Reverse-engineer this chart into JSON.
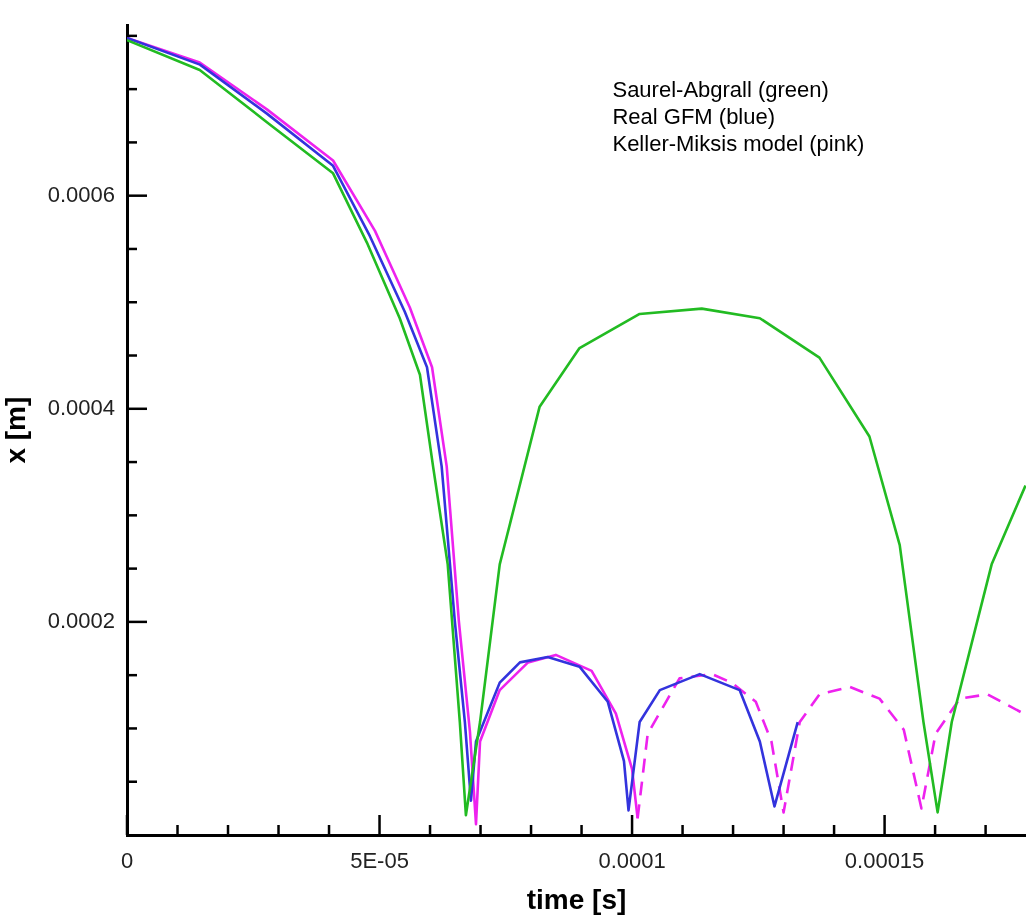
{
  "chart_data": {
    "type": "line",
    "xlabel": "time [s]",
    "ylabel": "x [m]",
    "annotations": [
      "Saurel-Abgrall (green)",
      "Real GFM (blue)",
      "Keller-Miksis model (pink)"
    ],
    "xlim": [
      0,
      0.000178
    ],
    "ylim": [
      0,
      0.00076
    ],
    "xticks": [
      0,
      {
        "value": 1e-05,
        "label": null
      },
      {
        "value": 2e-05,
        "label": null
      },
      {
        "value": 3e-05,
        "label": null
      },
      {
        "value": 4e-05,
        "label": null
      },
      {
        "value": 5e-05,
        "label": "5E-05"
      },
      {
        "value": 6e-05,
        "label": null
      },
      {
        "value": 7e-05,
        "label": null
      },
      {
        "value": 8e-05,
        "label": null
      },
      {
        "value": 9e-05,
        "label": null
      },
      0.0001,
      {
        "value": 0.00011,
        "label": null
      },
      {
        "value": 0.00012,
        "label": null
      },
      {
        "value": 0.00013,
        "label": null
      },
      {
        "value": 0.00014,
        "label": null
      },
      0.00015,
      {
        "value": 0.00016,
        "label": null
      },
      {
        "value": 0.00017,
        "label": null
      }
    ],
    "yticks": [
      {
        "value": 5e-05,
        "label": null
      },
      {
        "value": 0.0001,
        "label": null
      },
      {
        "value": 0.00015,
        "label": null
      },
      0.0002,
      {
        "value": 0.00025,
        "label": null
      },
      {
        "value": 0.0003,
        "label": null
      },
      {
        "value": 0.00035,
        "label": null
      },
      0.0004,
      {
        "value": 0.00045,
        "label": null
      },
      {
        "value": 0.0005,
        "label": null
      },
      {
        "value": 0.00055,
        "label": null
      },
      0.0006,
      {
        "value": 0.00065,
        "label": null
      },
      {
        "value": 0.0007,
        "label": null
      },
      {
        "value": 0.00075,
        "label": null
      }
    ],
    "grid": false,
    "legend": false,
    "marker": "none",
    "series": [
      {
        "color": "#22bb22",
        "line_style": "solid",
        "x": [
          0,
          1.44e-05,
          2.77e-05,
          4.08e-05,
          4.75e-05,
          5.4e-05,
          5.8e-05,
          6.06e-05,
          6.35e-05,
          6.59e-05,
          6.71e-05,
          6.99e-05,
          7.38e-05,
          8.17e-05,
          8.96e-05,
          0.0001015,
          0.0001138,
          0.0001253,
          0.0001371,
          0.000147,
          0.000153,
          0.0001577,
          0.0001605,
          0.0001633,
          0.0001712,
          0.0001779
        ],
        "values": [
          0.000746,
          0.000718,
          0.000669,
          0.000621,
          0.000556,
          0.000485,
          0.000432,
          0.000346,
          0.000254,
          0.000106,
          1.85e-05,
          0.000106,
          0.000254,
          0.000402,
          0.000457,
          0.000489,
          0.000494,
          0.000485,
          0.000448,
          0.000374,
          0.000272,
          0.000106,
          2.12e-05,
          0.000106,
          0.000254,
          0.000328
        ]
      },
      {
        "color": "#3333dd",
        "line_style": "solid",
        "x": [
          0,
          1.445e-05,
          2.77e-05,
          4.08e-05,
          4.81e-05,
          5.5e-05,
          5.94e-05,
          6.23e-05,
          6.49e-05,
          6.69e-05,
          6.81e-05,
          6.91e-05,
          7.38e-05,
          7.78e-05,
          8.33e-05,
          8.96e-05,
          9.52e-05,
          9.84e-05,
          9.93e-05,
          0.0001015,
          0.0001055,
          0.0001134,
          0.0001213,
          0.0001253,
          0.0001282,
          0.0001328
        ],
        "values": [
          0.000748,
          0.000723,
          0.000677,
          0.000628,
          0.000562,
          0.000491,
          0.000439,
          0.000346,
          0.000201,
          0.000106,
          3.23e-05,
          8.77e-05,
          0.000143,
          0.000162,
          0.000167,
          0.000158,
          0.000125,
          6.93e-05,
          2.31e-05,
          0.000106,
          0.000136,
          0.000151,
          0.000136,
          8.77e-05,
          2.68e-05,
          0.000106
        ]
      },
      {
        "color": "#ee22ee",
        "line_style": "solid",
        "x": [
          0,
          1.44e-05,
          2.77e-05,
          4.08e-05,
          4.91e-05,
          5.6e-05,
          6.04e-05,
          6.33e-05,
          6.57e-05,
          6.79e-05,
          6.91e-05,
          6.99e-05,
          7.38e-05,
          7.94e-05,
          8.49e-05,
          9.2e-05,
          9.68e-05,
          0.0001,
          0.0001011
        ],
        "values": [
          0.000748,
          0.000725,
          0.000681,
          0.000633,
          0.000567,
          0.000495,
          0.000439,
          0.000346,
          0.000201,
          9.7e-05,
          1.02e-05,
          8.77e-05,
          0.000136,
          0.000162,
          0.000169,
          0.000154,
          0.000114,
          6.19e-05,
          1.57e-05
        ]
      },
      {
        "color": "#ee22ee",
        "line_style": "dashed",
        "x": [
          0.0001011,
          0.0001031,
          0.0001094,
          0.0001158,
          0.0001197,
          0.0001245,
          0.0001276,
          0.00013,
          0.0001332,
          0.0001371,
          0.0001431,
          0.000149,
          0.0001538,
          0.0001573,
          0.0001601,
          0.0001649,
          0.0001704,
          0.0001775
        ],
        "values": [
          1.57e-05,
          9.51e-05,
          0.000147,
          0.000151,
          0.000143,
          0.000125,
          8.77e-05,
          2.12e-05,
          0.000106,
          0.000132,
          0.000139,
          0.000128,
          9.88e-05,
          2.49e-05,
          9.51e-05,
          0.000128,
          0.000132,
          0.000114
        ]
      }
    ]
  }
}
